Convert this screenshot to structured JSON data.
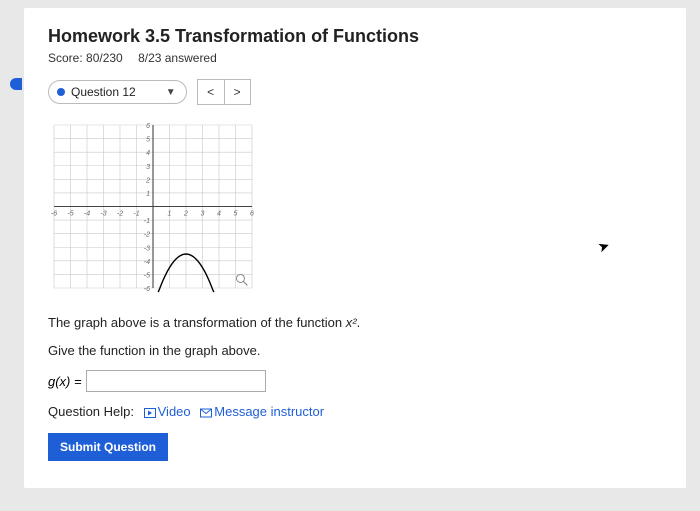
{
  "header": {
    "title": "Homework 3.5 Transformation of Functions",
    "score_label": "Score: 80/230",
    "answered_label": "8/23 answered"
  },
  "question_bar": {
    "label": "Question 12",
    "prev": "<",
    "next": ">"
  },
  "graph": {
    "xlim": [
      -6,
      6
    ],
    "ylim": [
      -6,
      6
    ],
    "tick_step": 1,
    "grid_color": "#c9c9c9",
    "axis_color": "#444",
    "tick_fontsize": 7,
    "tick_color": "#666",
    "curve_color": "#000",
    "curve_width": 1.4,
    "background": "#ffffff",
    "parabola": {
      "vertex_x": 2,
      "vertex_y": -3.5,
      "a": -1,
      "x_start": -0.2,
      "x_end": 4.2
    },
    "magnifier_x": 5.3,
    "magnifier_y": -5.3
  },
  "prompts": {
    "line1_pre": "The graph above is a transformation of the function ",
    "line1_math": "x²",
    "line1_post": ".",
    "line2": "Give the function in the graph above."
  },
  "answer": {
    "lhs": "g(x) =",
    "value": ""
  },
  "help": {
    "label": "Question Help:",
    "video": "Video",
    "message": "Message instructor"
  },
  "submit": {
    "label": "Submit Question"
  },
  "colors": {
    "accent": "#1e5fd8",
    "page_bg": "#e8e8e8",
    "card_bg": "#ffffff"
  }
}
